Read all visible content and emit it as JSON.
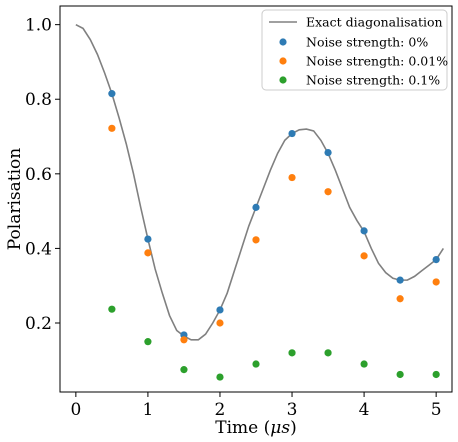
{
  "chart_data": {
    "type": "scatter",
    "xlabel_main": "Time (",
    "xlabel_unit": "μs",
    "xlabel_end": ")",
    "ylabel": "Polarisation",
    "xlim": [
      -0.22,
      5.22
    ],
    "ylim": [
      0.015,
      1.05
    ],
    "xticks": [
      0,
      1,
      2,
      3,
      4,
      5
    ],
    "yticks": [
      0.2,
      0.4,
      0.6,
      0.8,
      1.0
    ],
    "xtick_labels": [
      "0",
      "1",
      "2",
      "3",
      "4",
      "5"
    ],
    "ytick_labels": [
      "0.2",
      "0.4",
      "0.6",
      "0.8",
      "1.0"
    ],
    "legend_position": "top-right",
    "grid": false,
    "line": {
      "name": "Exact diagonalisation",
      "color": "#808080",
      "x": [
        0,
        0.1,
        0.2,
        0.3,
        0.4,
        0.5,
        0.6,
        0.7,
        0.8,
        0.9,
        1.0,
        1.1,
        1.2,
        1.3,
        1.4,
        1.5,
        1.6,
        1.7,
        1.8,
        1.9,
        2.0,
        2.1,
        2.2,
        2.3,
        2.4,
        2.5,
        2.6,
        2.7,
        2.8,
        2.9,
        3.0,
        3.1,
        3.2,
        3.3,
        3.4,
        3.5,
        3.6,
        3.7,
        3.8,
        3.9,
        4.0,
        4.1,
        4.2,
        4.3,
        4.4,
        4.5,
        4.6,
        4.7,
        4.8,
        4.9,
        5.0,
        5.1
      ],
      "y": [
        1.0,
        0.99,
        0.96,
        0.92,
        0.87,
        0.815,
        0.75,
        0.68,
        0.6,
        0.51,
        0.425,
        0.345,
        0.28,
        0.22,
        0.18,
        0.165,
        0.155,
        0.155,
        0.17,
        0.2,
        0.235,
        0.28,
        0.34,
        0.4,
        0.46,
        0.51,
        0.56,
        0.61,
        0.655,
        0.69,
        0.708,
        0.718,
        0.72,
        0.715,
        0.69,
        0.655,
        0.61,
        0.56,
        0.51,
        0.475,
        0.445,
        0.4,
        0.36,
        0.335,
        0.32,
        0.315,
        0.315,
        0.325,
        0.34,
        0.355,
        0.37,
        0.4
      ]
    },
    "series": [
      {
        "name": "Noise strength: 0%",
        "color": "#2e7bb4",
        "x": [
          0.5,
          1.0,
          1.5,
          2.0,
          2.5,
          3.0,
          3.5,
          4.0,
          4.5,
          5.0
        ],
        "y": [
          0.815,
          0.425,
          0.168,
          0.235,
          0.51,
          0.708,
          0.657,
          0.447,
          0.315,
          0.37
        ]
      },
      {
        "name": "Noise strength: 0.01%",
        "color": "#ff7f0e",
        "x": [
          0.5,
          1.0,
          1.5,
          2.0,
          2.5,
          3.0,
          3.5,
          4.0,
          4.5,
          5.0
        ],
        "y": [
          0.722,
          0.388,
          0.155,
          0.2,
          0.423,
          0.59,
          0.552,
          0.38,
          0.265,
          0.31
        ]
      },
      {
        "name": "Noise strength: 0.1%",
        "color": "#2ca02c",
        "x": [
          0.5,
          1.0,
          1.5,
          2.0,
          2.5,
          3.0,
          3.5,
          4.0,
          4.5,
          5.0
        ],
        "y": [
          0.237,
          0.15,
          0.075,
          0.055,
          0.09,
          0.12,
          0.12,
          0.09,
          0.062,
          0.062
        ]
      }
    ]
  }
}
